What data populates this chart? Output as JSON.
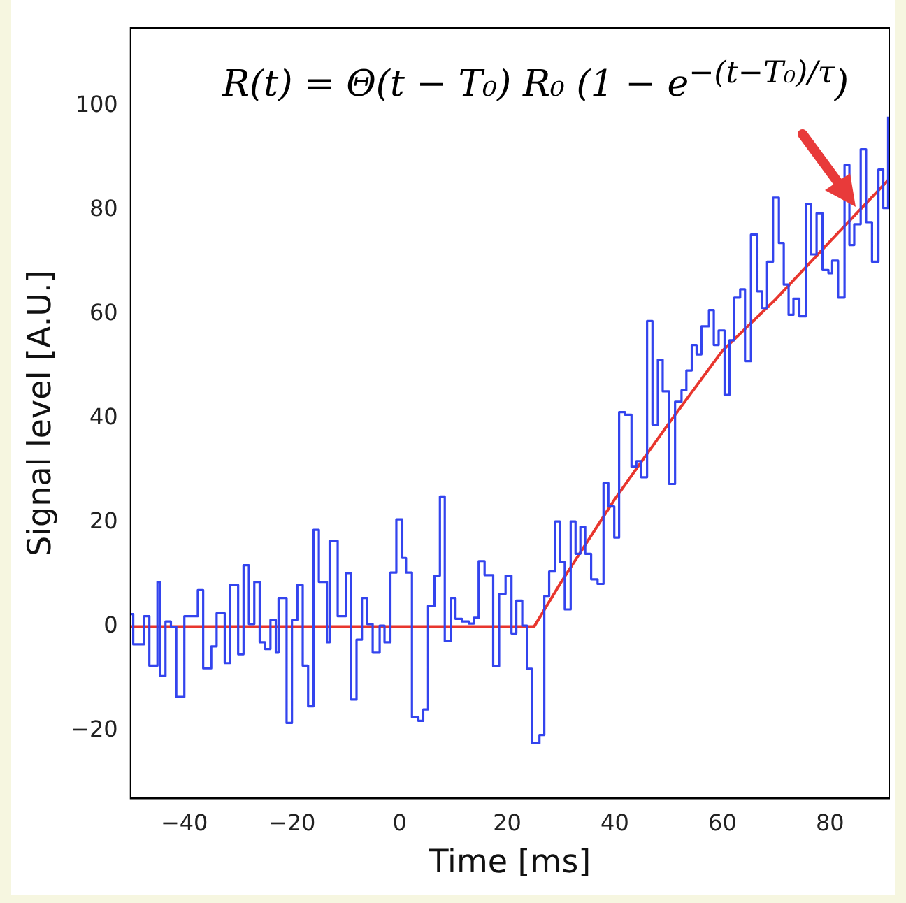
{
  "chart_data": {
    "type": "line",
    "xlabel": "Time [ms]",
    "ylabel": "Signal level [A.U.]",
    "annotations": [
      "R(t) = Θ(t − T₀) R₀ (1 − e$^{−(t−T₀)/τ}$)"
    ],
    "xlim": [
      -50,
      91
    ],
    "xticks": [
      -40,
      -20,
      0,
      20,
      40,
      60,
      80
    ],
    "ylim": [
      -33,
      115
    ],
    "yticks": [
      -20,
      0,
      20,
      40,
      60,
      80,
      100
    ],
    "grid": false,
    "legend": false,
    "series": [
      {
        "type": "step",
        "color": "#3344ee",
        "x": [
          -50,
          -49.5,
          -47.5,
          -46.5,
          -45,
          -44.5,
          -43.5,
          -42.5,
          -41.5,
          -40,
          -37.5,
          -36.5,
          -35,
          -34,
          -32.5,
          -31.5,
          -30,
          -29,
          -28,
          -27,
          -26,
          -25,
          -24,
          -23,
          -22.5,
          -21,
          -20,
          -19,
          -18,
          -17,
          -16,
          -15,
          -13.5,
          -13,
          -11.5,
          -10,
          -9,
          -8,
          -7,
          -6,
          -5,
          -3.7,
          -2.8,
          -1.7,
          -0.6,
          0.5,
          1.2,
          2.3,
          3.5,
          4.4,
          5.3,
          6.5,
          7.5,
          8.4,
          9.5,
          10.4,
          11.6,
          12.9,
          13.8,
          14.7,
          15.8,
          17.4,
          18.5,
          19.7,
          20.8,
          21.7,
          22.8,
          23.7,
          24.6,
          26,
          26.9,
          27.8,
          28.9,
          29.8,
          30.7,
          31.8,
          32.7,
          33.6,
          34.5,
          35.6,
          36.8,
          37.9,
          38.8,
          39.9,
          40.8,
          41.9,
          43.1,
          44,
          44.9,
          46,
          47,
          48,
          48.9,
          50.1,
          51.2,
          52.4,
          53.3,
          54.3,
          55.2,
          56.1,
          57.5,
          58.4,
          59.3,
          60.4,
          61.3,
          62.2,
          63.3,
          64.2,
          65.3,
          66.5,
          67.4,
          68.3,
          69.4,
          70.5,
          71.4,
          72.3,
          73.2,
          74.3,
          75.5,
          76.4,
          77.5,
          78.6,
          79.7,
          80.4,
          81.5,
          82.7,
          83.6,
          84.5,
          85.7,
          86.7,
          87.8,
          89,
          89.9,
          90.8
        ],
        "values": [
          2.4,
          -3.4,
          2,
          -7.5,
          8.6,
          -9.5,
          1,
          0,
          -13.5,
          2,
          7,
          -8,
          -3.8,
          2.6,
          -7,
          8,
          -5.3,
          11.8,
          0.5,
          8.6,
          -3,
          -4.3,
          1.3,
          -5,
          5.5,
          -18.5,
          1.3,
          8,
          -7.5,
          -15.3,
          18.6,
          8.6,
          -3,
          16.5,
          2,
          10.3,
          -14,
          -2.5,
          5.5,
          0.5,
          -5,
          0.2,
          -3,
          10.4,
          20.6,
          13.2,
          10.4,
          -17.4,
          -18.1,
          -15.9,
          4,
          9.8,
          25,
          -2.8,
          5.5,
          1.5,
          1,
          0.6,
          1.7,
          12.6,
          9.9,
          -7.6,
          6.3,
          9.8,
          -1.3,
          5,
          0.2,
          -8.1,
          -22.4,
          -20.8,
          5.9,
          10.6,
          20.2,
          12.4,
          3.3,
          20.2,
          14,
          19.2,
          14,
          9.1,
          8.2,
          27.6,
          23.1,
          17.1,
          41.2,
          40.7,
          30.7,
          31.8,
          28.7,
          58.7,
          38.8,
          51.3,
          45.2,
          27.4,
          43.2,
          45.4,
          49.2,
          54.1,
          52.3,
          57.7,
          60.8,
          54.1,
          56.9,
          44.5,
          55,
          63.2,
          64.8,
          51,
          75.3,
          64.4,
          61.2,
          70.1,
          82.4,
          73.7,
          65.7,
          59.9,
          63,
          59.6,
          81.2,
          71.5,
          79.4,
          68.5,
          67.9,
          70.3,
          63.2,
          88.7,
          73.3,
          77.3,
          91.7,
          77.7,
          70.1,
          87.8,
          80.4,
          98
        ]
      },
      {
        "type": "line",
        "color": "#e8362e",
        "x": [
          -50,
          25,
          30,
          40,
          50,
          60,
          70,
          80,
          91
        ],
        "values": [
          0,
          0,
          8.5,
          24.5,
          39,
          53,
          63,
          74,
          86
        ]
      }
    ]
  }
}
